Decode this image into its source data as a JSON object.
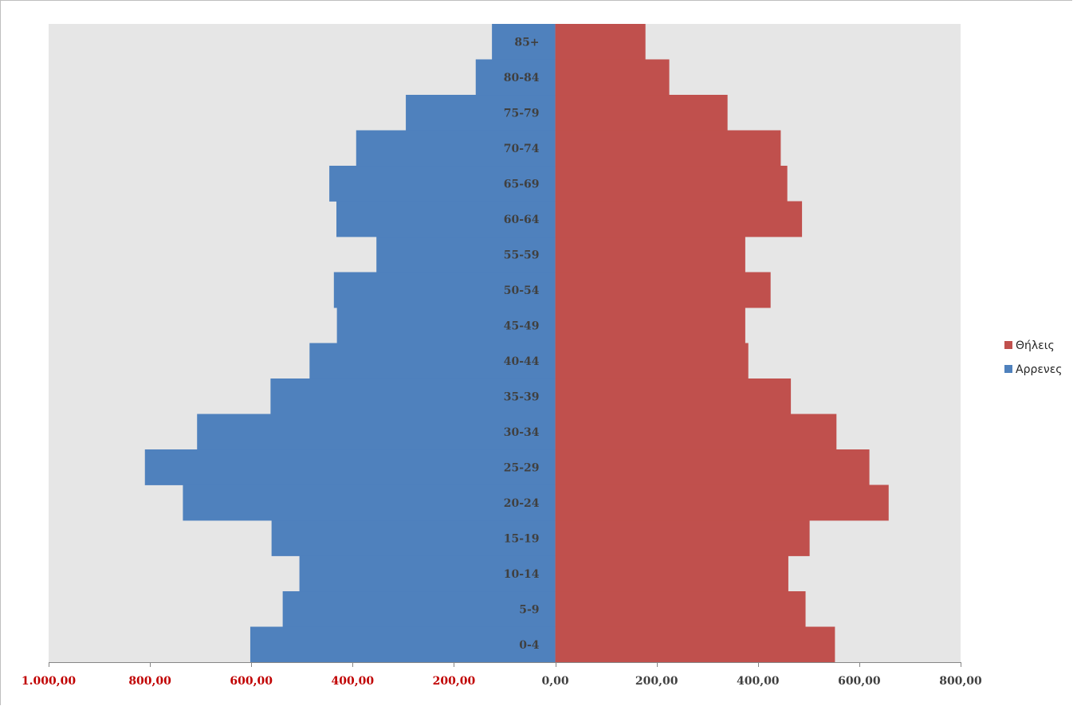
{
  "chart_data": {
    "type": "bar",
    "orientation": "horizontal",
    "layout": "population-pyramid",
    "categories": [
      "0-4",
      "5-9",
      "10-14",
      "15-19",
      "20-24",
      "25-29",
      "30-34",
      "35-39",
      "40-44",
      "45-49",
      "50-54",
      "55-59",
      "60-64",
      "65-69",
      "70-74",
      "75-79",
      "80-84",
      "85+"
    ],
    "series": [
      {
        "name": "Θήλεις",
        "side": "right",
        "color": "#c0504d",
        "values": [
          552,
          494,
          460,
          502,
          658,
          620,
          555,
          465,
          381,
          375,
          425,
          375,
          487,
          458,
          445,
          340,
          225,
          178
        ]
      },
      {
        "name": "Αρρενες",
        "side": "left",
        "color": "#4f81bd",
        "values": [
          602,
          538,
          505,
          560,
          735,
          810,
          707,
          562,
          485,
          431,
          437,
          353,
          432,
          446,
          393,
          295,
          157,
          125
        ]
      }
    ],
    "xlim": [
      -1000,
      800
    ],
    "x_ticks": [
      {
        "value": -1000,
        "label": "1.000,00"
      },
      {
        "value": -800,
        "label": "800,00"
      },
      {
        "value": -600,
        "label": "600,00"
      },
      {
        "value": -400,
        "label": "400,00"
      },
      {
        "value": -200,
        "label": "200,00"
      },
      {
        "value": 0,
        "label": "0,00"
      },
      {
        "value": 200,
        "label": "200,00"
      },
      {
        "value": 400,
        "label": "400,00"
      },
      {
        "value": 600,
        "label": "600,00"
      },
      {
        "value": 800,
        "label": "800,00"
      }
    ],
    "negative_tick_color": "#c00000",
    "positive_tick_color": "#404040",
    "plot_background": "#e6e6e6",
    "grid": false,
    "legend_position": "right",
    "title": "",
    "xlabel": "",
    "ylabel": ""
  }
}
